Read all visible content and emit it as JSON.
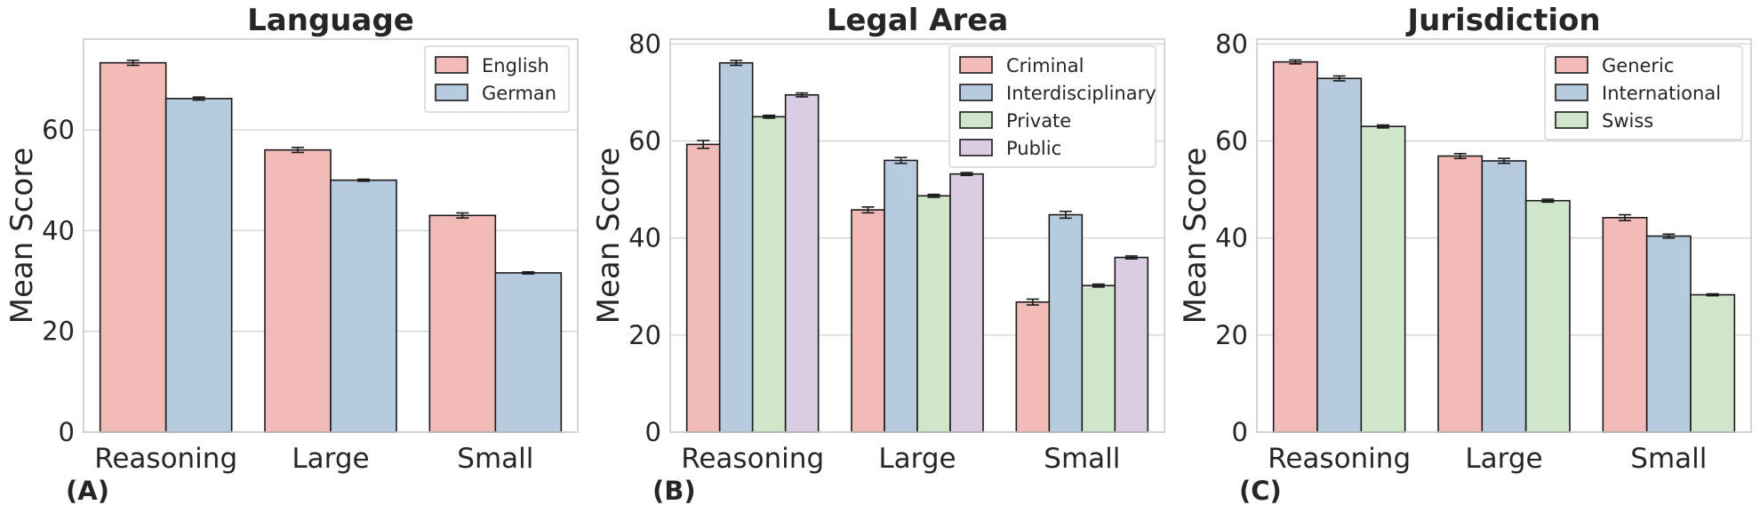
{
  "chart_data": [
    {
      "type": "bar",
      "panel_label": "(A)",
      "title": "Language",
      "ylabel": "Mean Score",
      "xlabel": "",
      "categories": [
        "Reasoning",
        "Large",
        "Small"
      ],
      "ylim": [
        0,
        78
      ],
      "yticks": [
        0,
        20,
        40,
        60
      ],
      "grid": true,
      "legend": "top-right",
      "series": [
        {
          "name": "English",
          "color": "#f2bbb8",
          "values": [
            73.3,
            56.0,
            43.0
          ],
          "errors": [
            0.5,
            0.5,
            0.5
          ]
        },
        {
          "name": "German",
          "color": "#b7cbde",
          "values": [
            66.2,
            50.0,
            31.6
          ],
          "errors": [
            0.3,
            0.2,
            0.2
          ]
        }
      ]
    },
    {
      "type": "bar",
      "panel_label": "(B)",
      "title": "Legal Area",
      "ylabel": "Mean Score",
      "xlabel": "",
      "categories": [
        "Reasoning",
        "Large",
        "Small"
      ],
      "ylim": [
        0,
        81
      ],
      "yticks": [
        0,
        20,
        40,
        60,
        80
      ],
      "grid": true,
      "legend": "top-right",
      "series": [
        {
          "name": "Criminal",
          "color": "#f2bbb8",
          "values": [
            59.3,
            45.8,
            26.8
          ],
          "errors": [
            0.8,
            0.6,
            0.6
          ]
        },
        {
          "name": "Interdisciplinary",
          "color": "#b7cbde",
          "values": [
            76.1,
            56.0,
            44.8
          ],
          "errors": [
            0.5,
            0.6,
            0.7
          ]
        },
        {
          "name": "Private",
          "color": "#cfe6cb",
          "values": [
            65.0,
            48.7,
            30.2
          ],
          "errors": [
            0.3,
            0.3,
            0.3
          ]
        },
        {
          "name": "Public",
          "color": "#dacde3",
          "values": [
            69.5,
            53.2,
            36.0
          ],
          "errors": [
            0.4,
            0.3,
            0.3
          ]
        }
      ]
    },
    {
      "type": "bar",
      "panel_label": "(C)",
      "title": "Jurisdiction",
      "ylabel": "Mean Score",
      "xlabel": "",
      "categories": [
        "Reasoning",
        "Large",
        "Small"
      ],
      "ylim": [
        0,
        81
      ],
      "yticks": [
        0,
        20,
        40,
        60,
        80
      ],
      "grid": true,
      "legend": "top-right",
      "series": [
        {
          "name": "Generic",
          "color": "#f2bbb8",
          "values": [
            76.3,
            56.9,
            44.2
          ],
          "errors": [
            0.4,
            0.5,
            0.6
          ]
        },
        {
          "name": "International",
          "color": "#b7cbde",
          "values": [
            72.9,
            55.9,
            40.4
          ],
          "errors": [
            0.5,
            0.5,
            0.4
          ]
        },
        {
          "name": "Swiss",
          "color": "#cfe6cb",
          "values": [
            63.0,
            47.7,
            28.3
          ],
          "errors": [
            0.3,
            0.3,
            0.2
          ]
        }
      ]
    }
  ]
}
